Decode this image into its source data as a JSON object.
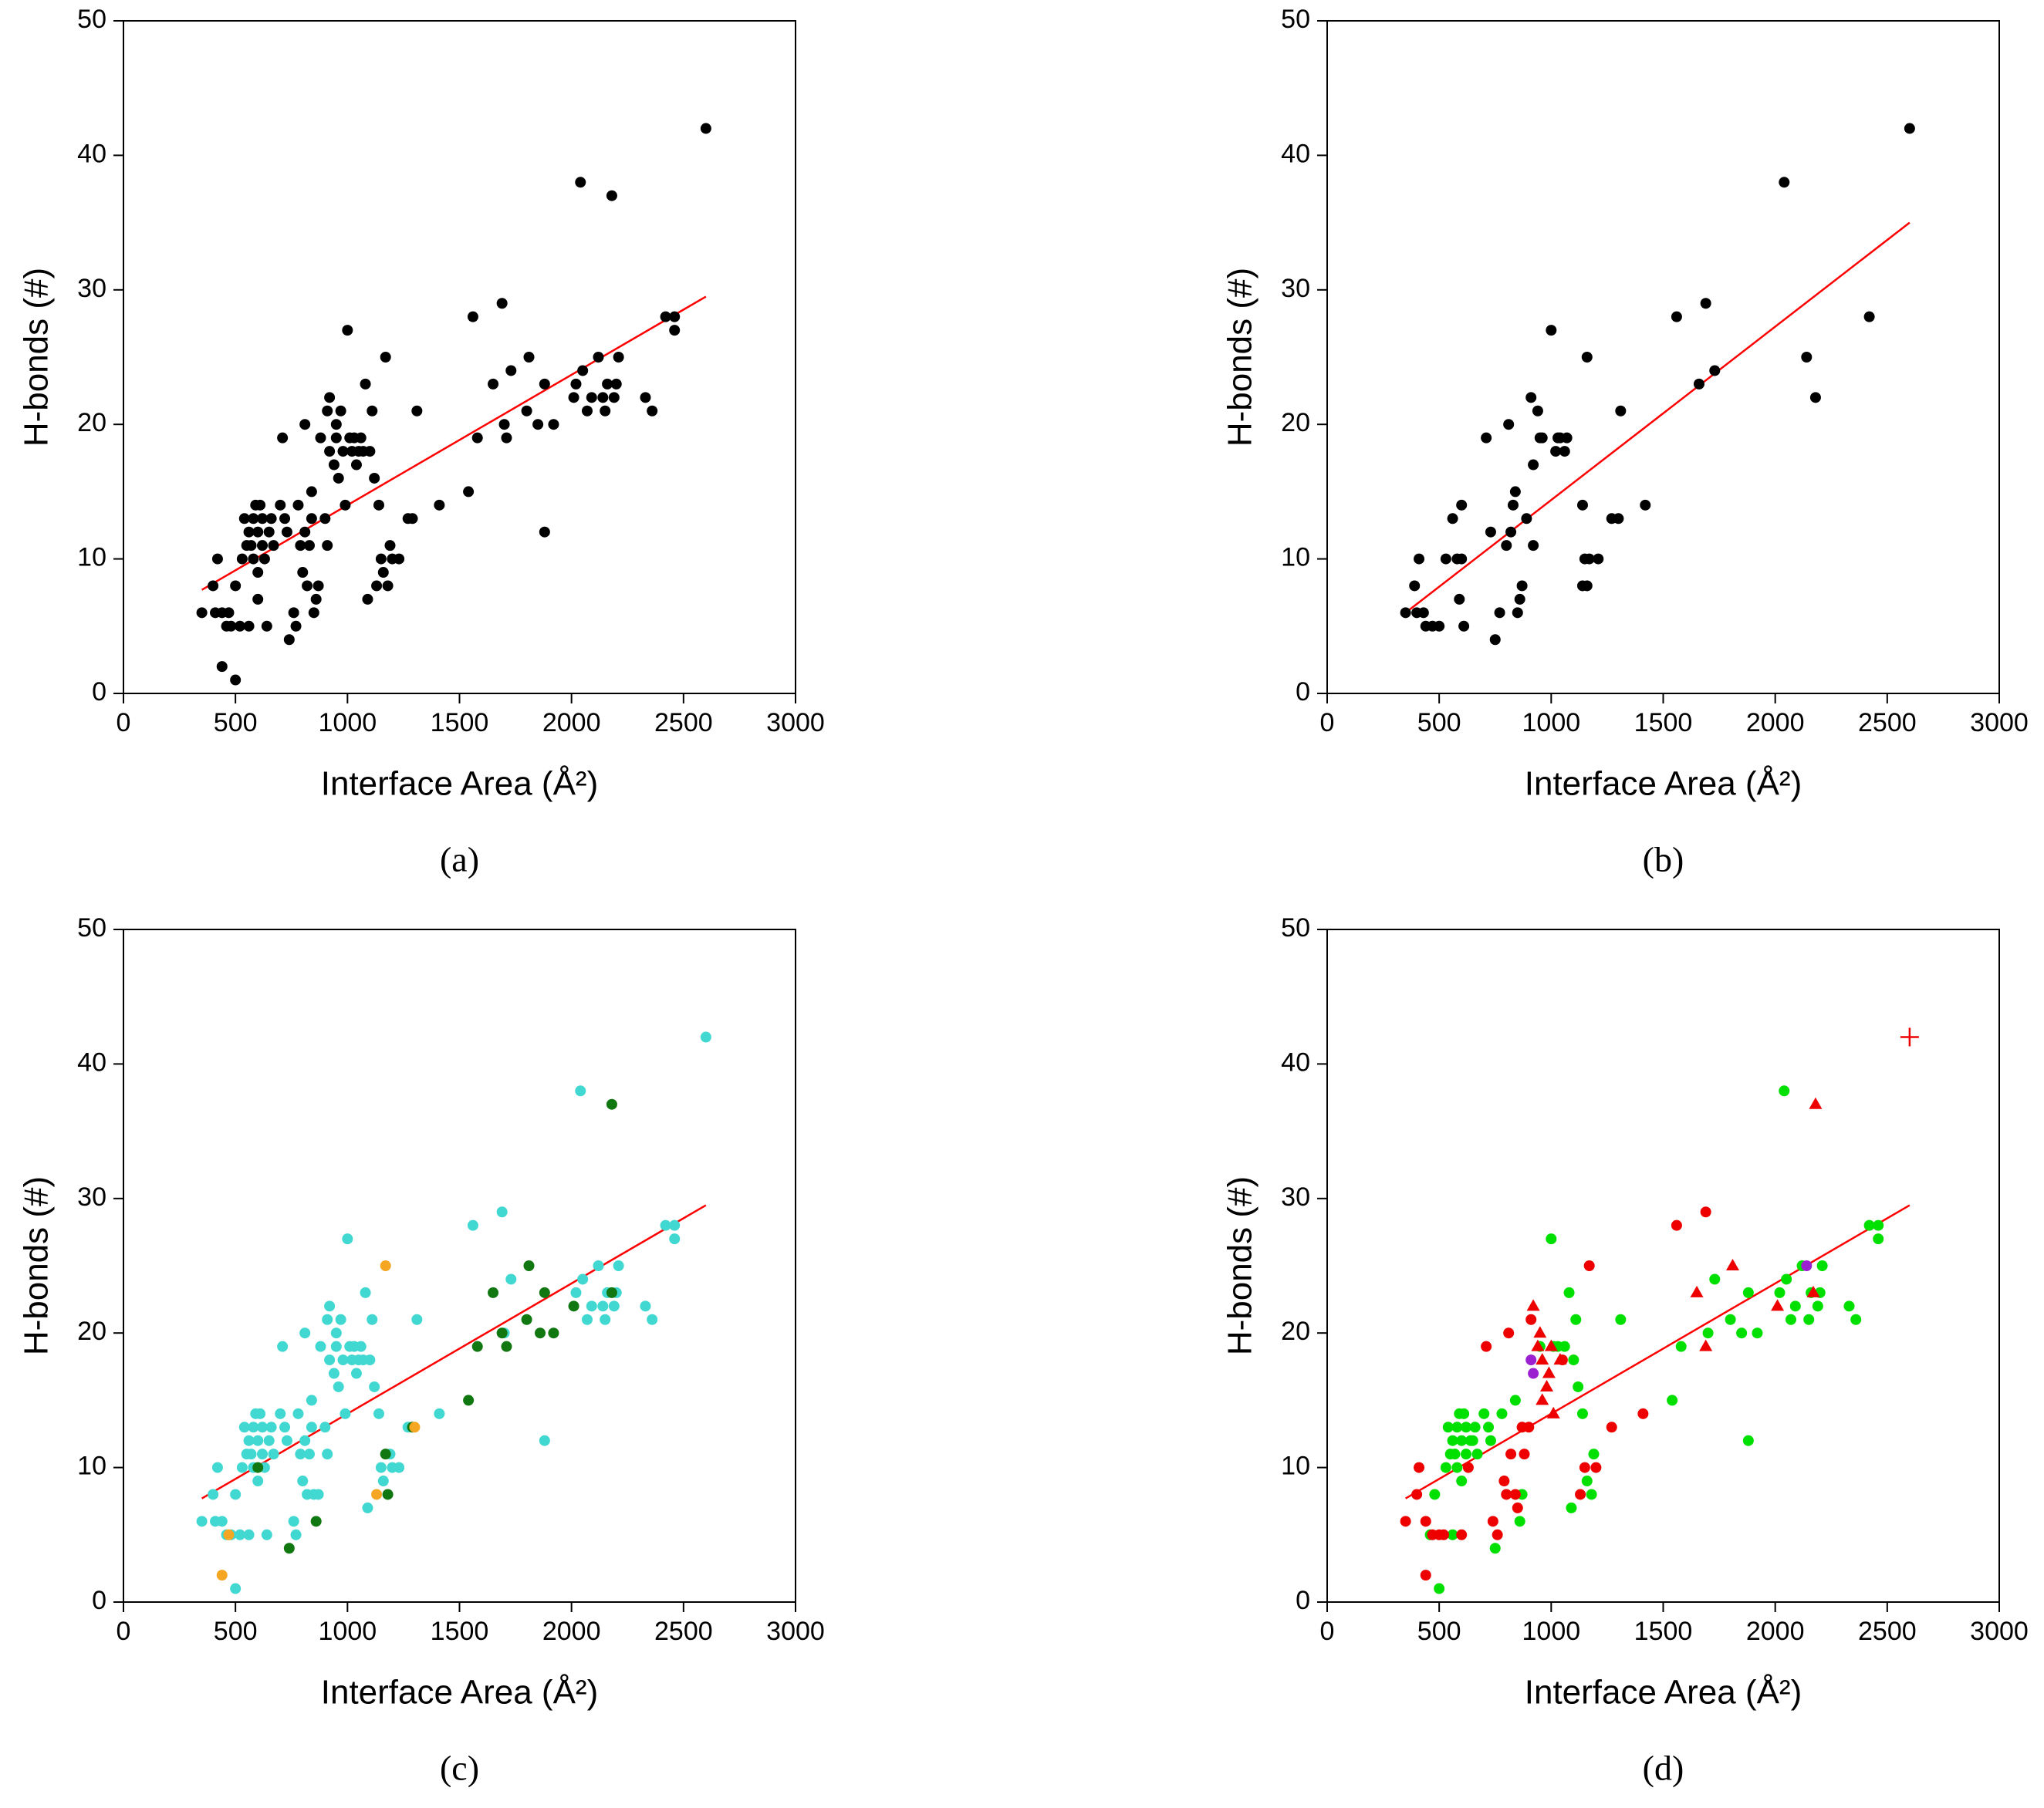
{
  "chart_data": [
    {
      "type": "scatter",
      "caption": "(a)",
      "xlabel": "Interface Area (Å²)",
      "ylabel": "H-bonds (#)",
      "xlim": [
        0,
        3000
      ],
      "ylim": [
        0,
        50
      ],
      "xticks": [
        0,
        500,
        1000,
        1500,
        2000,
        2500,
        3000
      ],
      "yticks": [
        0,
        10,
        20,
        30,
        40,
        50
      ],
      "series": [
        {
          "color": "#000000",
          "marker": "circle",
          "x": [
            350,
            400,
            410,
            420,
            440,
            440,
            460,
            470,
            480,
            500,
            500,
            520,
            530,
            540,
            550,
            560,
            560,
            570,
            580,
            580,
            590,
            600,
            600,
            600,
            610,
            620,
            620,
            630,
            640,
            650,
            660,
            670,
            700,
            710,
            720,
            730,
            740,
            760,
            770,
            780,
            790,
            800,
            810,
            810,
            820,
            830,
            840,
            840,
            850,
            860,
            870,
            880,
            900,
            910,
            910,
            920,
            920,
            940,
            950,
            950,
            960,
            970,
            980,
            990,
            1000,
            1010,
            1020,
            1030,
            1040,
            1050,
            1060,
            1070,
            1080,
            1090,
            1100,
            1110,
            1120,
            1130,
            1140,
            1150,
            1160,
            1170,
            1180,
            1190,
            1200,
            1230,
            1270,
            1290,
            1310,
            1410,
            1540,
            1560,
            1580,
            1650,
            1690,
            1700,
            1710,
            1730,
            1800,
            1810,
            1850,
            1880,
            1880,
            1920,
            2010,
            2020,
            2040,
            2050,
            2070,
            2090,
            2120,
            2140,
            2150,
            2160,
            2180,
            2190,
            2200,
            2210,
            2330,
            2360,
            2420,
            2460,
            2460,
            2600
          ],
          "values": [
            6,
            8,
            6,
            10,
            6,
            2,
            5,
            6,
            5,
            1,
            8,
            5,
            10,
            13,
            11,
            5,
            12,
            11,
            10,
            13,
            14,
            12,
            9,
            7,
            14,
            11,
            13,
            10,
            5,
            12,
            13,
            11,
            14,
            19,
            13,
            12,
            4,
            6,
            5,
            14,
            11,
            9,
            20,
            12,
            8,
            11,
            13,
            15,
            6,
            7,
            8,
            19,
            13,
            11,
            21,
            22,
            18,
            17,
            20,
            19,
            16,
            21,
            18,
            14,
            27,
            19,
            18,
            19,
            17,
            18,
            19,
            18,
            23,
            7,
            18,
            21,
            16,
            8,
            14,
            10,
            9,
            25,
            8,
            11,
            10,
            10,
            13,
            13,
            21,
            14,
            15,
            28,
            19,
            23,
            29,
            20,
            19,
            24,
            21,
            25,
            20,
            12,
            23,
            20,
            22,
            23,
            38,
            24,
            21,
            22,
            25,
            22,
            21,
            23,
            37,
            22,
            23,
            25,
            22,
            21,
            28,
            27,
            28,
            42
          ]
        }
      ],
      "fit": {
        "color": "#ff0000",
        "x": [
          350,
          2600
        ],
        "values": [
          7.7,
          29.5
        ]
      }
    },
    {
      "type": "scatter",
      "caption": "(b)",
      "xlabel": "Interface Area (Å²)",
      "ylabel": "H-bonds (#)",
      "xlim": [
        0,
        3000
      ],
      "ylim": [
        0,
        50
      ],
      "xticks": [
        0,
        500,
        1000,
        1500,
        2000,
        2500,
        3000
      ],
      "yticks": [
        0,
        10,
        20,
        30,
        40,
        50
      ],
      "series": [
        {
          "color": "#000000",
          "marker": "circle",
          "x": [
            350,
            390,
            400,
            410,
            430,
            440,
            470,
            500,
            530,
            560,
            580,
            590,
            600,
            600,
            610,
            710,
            730,
            750,
            770,
            800,
            810,
            820,
            830,
            840,
            850,
            860,
            870,
            890,
            910,
            920,
            920,
            940,
            950,
            960,
            1000,
            1020,
            1030,
            1040,
            1060,
            1070,
            1140,
            1140,
            1150,
            1160,
            1160,
            1170,
            1210,
            1270,
            1300,
            1310,
            1420,
            1560,
            1660,
            1690,
            1730,
            2040,
            2140,
            2180,
            2420,
            2600
          ],
          "values": [
            6,
            8,
            6,
            10,
            6,
            5,
            5,
            5,
            10,
            13,
            10,
            7,
            14,
            10,
            5,
            19,
            12,
            4,
            6,
            11,
            20,
            12,
            14,
            15,
            6,
            7,
            8,
            13,
            22,
            17,
            11,
            21,
            19,
            19,
            27,
            18,
            19,
            19,
            18,
            19,
            14,
            8,
            10,
            8,
            25,
            10,
            10,
            13,
            13,
            21,
            14,
            28,
            23,
            29,
            24,
            38,
            25,
            22,
            28,
            42
          ]
        }
      ],
      "fit": {
        "color": "#ff0000",
        "x": [
          350,
          2600
        ],
        "values": [
          6,
          35
        ]
      }
    },
    {
      "type": "scatter",
      "caption": "(c)",
      "xlabel": "Interface Area (Å²)",
      "ylabel": "H-bonds (#)",
      "xlim": [
        0,
        3000
      ],
      "ylim": [
        0,
        50
      ],
      "xticks": [
        0,
        500,
        1000,
        1500,
        2000,
        2500,
        3000
      ],
      "yticks": [
        0,
        10,
        20,
        30,
        40,
        50
      ],
      "series": [
        {
          "color": "#40d8d0",
          "marker": "circle",
          "x": [
            350,
            400,
            410,
            420,
            440,
            460,
            480,
            500,
            500,
            520,
            530,
            540,
            550,
            560,
            560,
            570,
            580,
            580,
            590,
            600,
            600,
            610,
            620,
            620,
            630,
            640,
            650,
            660,
            670,
            700,
            710,
            720,
            730,
            760,
            770,
            780,
            790,
            800,
            810,
            810,
            820,
            830,
            840,
            840,
            850,
            870,
            880,
            900,
            910,
            910,
            920,
            920,
            940,
            950,
            950,
            960,
            970,
            980,
            990,
            1000,
            1010,
            1020,
            1030,
            1040,
            1050,
            1060,
            1070,
            1080,
            1090,
            1100,
            1110,
            1120,
            1140,
            1150,
            1160,
            1190,
            1200,
            1230,
            1270,
            1310,
            1410,
            1560,
            1690,
            1700,
            1730,
            1880,
            2020,
            2040,
            2050,
            2070,
            2090,
            2120,
            2140,
            2150,
            2160,
            2190,
            2200,
            2210,
            2330,
            2360,
            2420,
            2460,
            2460,
            2600
          ],
          "values": [
            6,
            8,
            6,
            10,
            6,
            5,
            5,
            1,
            8,
            5,
            10,
            13,
            11,
            5,
            12,
            11,
            10,
            13,
            14,
            12,
            9,
            14,
            11,
            13,
            10,
            5,
            12,
            13,
            11,
            14,
            19,
            13,
            12,
            6,
            5,
            14,
            11,
            9,
            20,
            12,
            8,
            11,
            13,
            15,
            8,
            8,
            19,
            13,
            11,
            21,
            22,
            18,
            17,
            20,
            19,
            16,
            21,
            18,
            14,
            27,
            19,
            18,
            19,
            17,
            18,
            19,
            18,
            23,
            7,
            18,
            21,
            16,
            14,
            10,
            9,
            11,
            10,
            10,
            13,
            21,
            14,
            28,
            29,
            20,
            24,
            12,
            23,
            38,
            24,
            21,
            22,
            25,
            22,
            21,
            23,
            22,
            23,
            25,
            22,
            21,
            28,
            27,
            28,
            42
          ]
        },
        {
          "color": "#117711",
          "marker": "circle",
          "x": [
            600,
            740,
            860,
            1170,
            1180,
            1290,
            1540,
            1580,
            1650,
            1690,
            1710,
            1800,
            1810,
            1860,
            1880,
            1920,
            2010,
            2180,
            2180
          ],
          "values": [
            10,
            4,
            6,
            11,
            8,
            13,
            15,
            19,
            23,
            20,
            19,
            21,
            25,
            20,
            23,
            20,
            22,
            37,
            23
          ]
        },
        {
          "color": "#f5a623",
          "marker": "circle",
          "x": [
            440,
            470,
            1130,
            1170,
            1300
          ],
          "values": [
            2,
            5,
            8,
            25,
            13
          ]
        }
      ],
      "fit": {
        "color": "#ff0000",
        "x": [
          350,
          2600
        ],
        "values": [
          7.7,
          29.5
        ]
      }
    },
    {
      "type": "scatter",
      "caption": "(d)",
      "xlabel": "Interface Area (Å²)",
      "ylabel": "H-bonds (#)",
      "xlim": [
        0,
        3000
      ],
      "ylim": [
        0,
        50
      ],
      "xticks": [
        0,
        500,
        1000,
        1500,
        2000,
        2500,
        3000
      ],
      "yticks": [
        0,
        10,
        20,
        30,
        40,
        50
      ],
      "series": [
        {
          "color": "#00e000",
          "marker": "circle",
          "x": [
            460,
            480,
            500,
            530,
            540,
            550,
            560,
            560,
            570,
            580,
            580,
            590,
            600,
            600,
            610,
            620,
            620,
            640,
            650,
            660,
            670,
            700,
            720,
            730,
            750,
            780,
            840,
            860,
            870,
            950,
            1000,
            1010,
            1030,
            1060,
            1080,
            1090,
            1100,
            1110,
            1120,
            1140,
            1160,
            1180,
            1190,
            1310,
            1540,
            1580,
            1700,
            1730,
            1800,
            1850,
            1880,
            1880,
            1920,
            2020,
            2040,
            2050,
            2070,
            2090,
            2120,
            2150,
            2160,
            2190,
            2200,
            2210,
            2330,
            2360,
            2420,
            2460,
            2460
          ],
          "values": [
            5,
            8,
            1,
            10,
            13,
            11,
            5,
            12,
            11,
            10,
            13,
            14,
            12,
            9,
            14,
            11,
            13,
            12,
            12,
            13,
            11,
            14,
            13,
            12,
            4,
            14,
            15,
            6,
            8,
            19,
            27,
            19,
            19,
            19,
            23,
            7,
            18,
            21,
            16,
            14,
            9,
            8,
            11,
            21,
            15,
            19,
            20,
            24,
            21,
            20,
            12,
            23,
            20,
            23,
            38,
            24,
            21,
            22,
            25,
            21,
            23,
            22,
            23,
            25,
            22,
            21,
            28,
            27,
            28
          ]
        },
        {
          "color": "#ee0000",
          "marker": "circle",
          "x": [
            350,
            400,
            410,
            440,
            440,
            470,
            500,
            520,
            600,
            630,
            710,
            740,
            760,
            790,
            800,
            810,
            820,
            840,
            850,
            870,
            880,
            900,
            910,
            1050,
            1130,
            1150,
            1170,
            1200,
            1270,
            1410,
            1560,
            1690
          ],
          "values": [
            6,
            8,
            10,
            6,
            2,
            5,
            5,
            5,
            5,
            10,
            19,
            6,
            5,
            9,
            8,
            20,
            11,
            8,
            7,
            13,
            11,
            13,
            21,
            18,
            8,
            10,
            25,
            10,
            13,
            14,
            28,
            29
          ]
        },
        {
          "color": "#ee0000",
          "marker": "triangle",
          "x": [
            920,
            940,
            950,
            960,
            960,
            980,
            990,
            1000,
            1010,
            1040,
            1650,
            1690,
            1810,
            2010,
            2170,
            2180
          ],
          "values": [
            22,
            19,
            20,
            18,
            15,
            16,
            17,
            19,
            14,
            18,
            23,
            19,
            25,
            22,
            23,
            37
          ]
        },
        {
          "color": "#9a20d0",
          "marker": "circle",
          "x": [
            910,
            920,
            2140
          ],
          "values": [
            18,
            17,
            25
          ]
        },
        {
          "color": "#ee0000",
          "marker": "plus",
          "x": [
            2600
          ],
          "values": [
            42
          ]
        }
      ],
      "fit": {
        "color": "#ff0000",
        "x": [
          350,
          2600
        ],
        "values": [
          7.7,
          29.5
        ]
      }
    }
  ]
}
